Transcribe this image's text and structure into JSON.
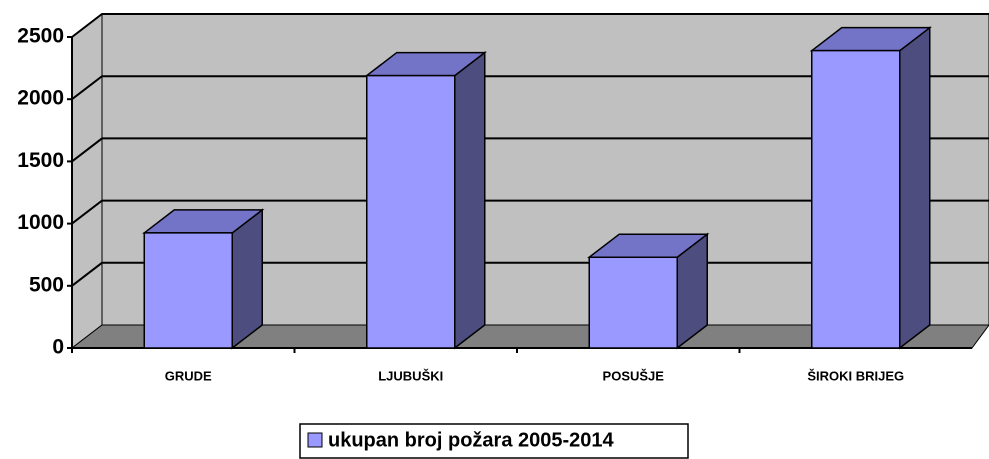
{
  "chart_data": {
    "type": "bar3d",
    "categories": [
      "GRUDE",
      "LJUBUŠKI",
      "POSUŠJE",
      "ŠIROKI BRIJEG"
    ],
    "series": [
      {
        "name": "ukupan broj požara 2005-2014",
        "color": "#9999ff",
        "values": [
          925,
          2190,
          730,
          2390
        ]
      }
    ],
    "ylim": [
      0,
      2500
    ],
    "yticks": [
      0,
      500,
      1000,
      1500,
      2000,
      2500
    ],
    "grid": true,
    "legend": "bottom"
  }
}
